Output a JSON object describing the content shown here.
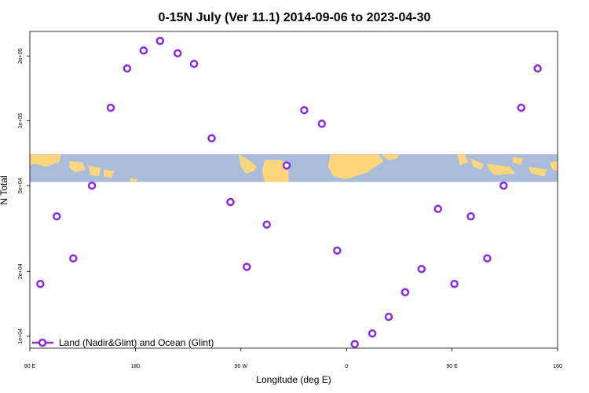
{
  "chart_data": {
    "type": "scatter",
    "title": "0-15N July (Ver 11.1)   2014-09-06 to 2023-04-30",
    "xlabel": "Longitude (deg E)",
    "ylabel": "N Total",
    "x_ticks": [
      {
        "value": 90,
        "label": "90 E"
      },
      {
        "value": 180,
        "label": "180"
      },
      {
        "value": 270,
        "label": "90 W"
      },
      {
        "value": 360,
        "label": "0"
      },
      {
        "value": 450,
        "label": "90 E"
      },
      {
        "value": 540,
        "label": "180"
      }
    ],
    "y_ticks": [
      {
        "value": 10000,
        "label": "1e+04"
      },
      {
        "value": 20000,
        "label": "2e+04"
      },
      {
        "value": 50000,
        "label": "5e+04"
      },
      {
        "value": 100000,
        "label": "1e+05"
      },
      {
        "value": 200000,
        "label": "2e+05"
      }
    ],
    "xlim": [
      90,
      540
    ],
    "ylim": [
      8800,
      260000
    ],
    "y_scale": "log",
    "grid": false,
    "legend_position": "bottom-left",
    "map_band": {
      "y_range": [
        52000,
        70000
      ],
      "ocean_color": "#a9bddb",
      "land_color": "#fdd57e"
    },
    "series": [
      {
        "name": "Land (Nadir&Glint) and Ocean (Glint)",
        "color": "#8a2be2",
        "x": [
          99,
          113,
          127,
          143,
          159,
          173,
          187,
          201,
          216,
          230,
          245,
          261,
          275,
          292,
          309,
          324,
          339,
          352,
          367,
          382,
          396,
          410,
          424,
          438,
          452,
          466,
          480,
          494,
          509,
          523
        ],
        "y": [
          17500,
          36000,
          23000,
          50000,
          115000,
          175000,
          212000,
          235000,
          206000,
          184000,
          83000,
          42000,
          21000,
          33000,
          62000,
          112000,
          97000,
          25000,
          9200,
          10300,
          12300,
          16000,
          20500,
          39000,
          17500,
          36000,
          23000,
          50000,
          115000,
          175000
        ]
      }
    ]
  }
}
